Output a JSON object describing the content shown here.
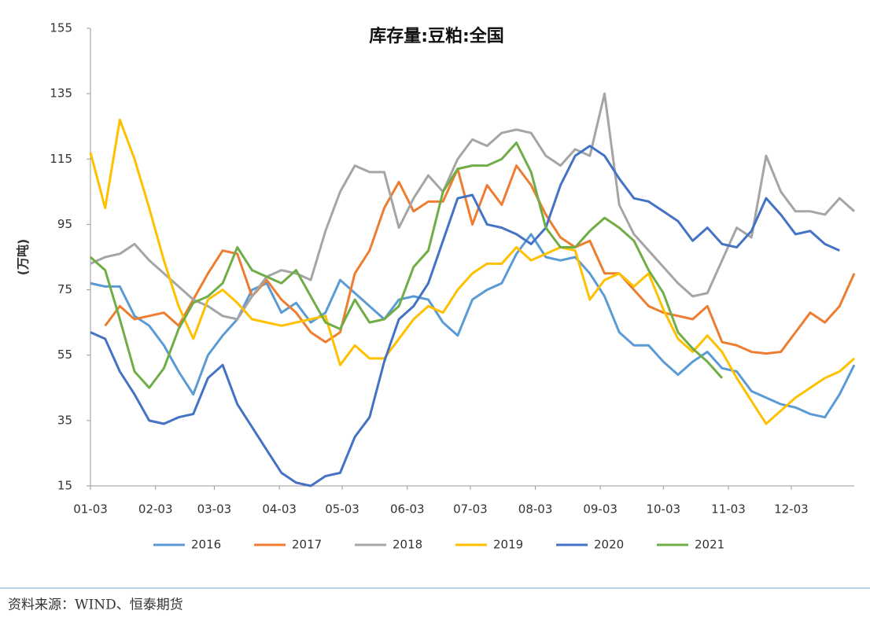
{
  "chart_data": {
    "type": "line",
    "title": "库存量:豆粕:全国",
    "y_label": "(万吨)",
    "x": [
      0,
      1,
      2,
      3,
      4,
      5,
      6,
      7,
      8,
      9,
      10,
      11,
      12,
      13,
      14,
      15,
      16,
      17,
      18,
      19,
      20,
      21,
      22,
      23,
      24,
      25,
      26,
      27,
      28,
      29,
      30,
      31,
      32,
      33,
      34,
      35,
      36,
      37,
      38,
      39,
      40,
      41,
      42,
      43,
      44,
      45,
      46,
      47,
      48,
      49,
      50,
      51,
      52
    ],
    "xlim": [
      0,
      52
    ],
    "xticks": [
      {
        "value": 0,
        "label": "01-03"
      },
      {
        "value": 4.43,
        "label": "02-03"
      },
      {
        "value": 8.43,
        "label": "03-03"
      },
      {
        "value": 12.86,
        "label": "04-03"
      },
      {
        "value": 17.14,
        "label": "05-03"
      },
      {
        "value": 21.57,
        "label": "06-03"
      },
      {
        "value": 25.86,
        "label": "07-03"
      },
      {
        "value": 30.29,
        "label": "08-03"
      },
      {
        "value": 34.71,
        "label": "09-03"
      },
      {
        "value": 39,
        "label": "10-03"
      },
      {
        "value": 43.43,
        "label": "11-03"
      },
      {
        "value": 47.71,
        "label": "12-03"
      }
    ],
    "ylim": [
      15,
      155
    ],
    "yticks": [
      15,
      35,
      55,
      75,
      95,
      115,
      135,
      155
    ],
    "grid": false,
    "series": [
      {
        "name": "2016",
        "color": "#5b9bd5",
        "values": [
          77,
          76,
          76,
          67,
          64,
          58,
          50,
          43,
          55,
          61,
          66,
          75,
          77,
          68,
          71,
          65,
          68,
          78,
          74,
          70,
          66,
          72,
          73,
          72,
          65,
          61,
          72,
          75,
          77,
          86,
          92,
          85,
          84,
          85,
          80,
          73,
          62,
          58,
          58,
          53,
          49,
          53,
          56,
          51,
          50,
          44,
          42,
          40,
          39,
          37,
          36,
          43,
          52
        ]
      },
      {
        "name": "2017",
        "color": "#ed7d31",
        "values": [
          null,
          64,
          70,
          66,
          67,
          68,
          64,
          72,
          80,
          87,
          86,
          73,
          78,
          72,
          68,
          62,
          59,
          62,
          80,
          87,
          100,
          108,
          99,
          102,
          102,
          112,
          95,
          107,
          101,
          113,
          107,
          98,
          91,
          88,
          90,
          80,
          80,
          75,
          70,
          68,
          67,
          66,
          70,
          59,
          58,
          56,
          55.5,
          56,
          62,
          68,
          65,
          70,
          80
        ]
      },
      {
        "name": "2018",
        "color": "#a5a5a5",
        "values": [
          83,
          85,
          86,
          89,
          84,
          80,
          76,
          72,
          70,
          67,
          66,
          73,
          79,
          81,
          80,
          78,
          93,
          105,
          113,
          111,
          111,
          94,
          103,
          110,
          105,
          115,
          121,
          119,
          123,
          124,
          123,
          116,
          113,
          118,
          116,
          135,
          101,
          92,
          87,
          82,
          77,
          73,
          74,
          84,
          94,
          91,
          116,
          105,
          99,
          99,
          98,
          103,
          99
        ]
      },
      {
        "name": "2019",
        "color": "#ffc000",
        "values": [
          117,
          100,
          127,
          115,
          100,
          84,
          70,
          60,
          72,
          75,
          71,
          66,
          65,
          64,
          65,
          66,
          67,
          52,
          58,
          54,
          54,
          60,
          66,
          70,
          68,
          75,
          80,
          83,
          83,
          88,
          84,
          86,
          88,
          87,
          72,
          78,
          80,
          76,
          80,
          69,
          60,
          56,
          61,
          56,
          48,
          41,
          34,
          38,
          42,
          45,
          48,
          50,
          54
        ]
      },
      {
        "name": "2020",
        "color": "#4472c4",
        "values": [
          62,
          60,
          50,
          43,
          35,
          34,
          36,
          37,
          48,
          52,
          40,
          33,
          26,
          19,
          16,
          15,
          18,
          19,
          30,
          36,
          53,
          66,
          70,
          77,
          90,
          103,
          104,
          95,
          94,
          92,
          89,
          94,
          107,
          116,
          119,
          116,
          109,
          103,
          102,
          99,
          96,
          90,
          94,
          89,
          88,
          93,
          103,
          98,
          92,
          93,
          89,
          87,
          null
        ]
      },
      {
        "name": "2021",
        "color": "#70ad47",
        "values": [
          85,
          81,
          66,
          50,
          45,
          51,
          63,
          71,
          73,
          77,
          88,
          81,
          79,
          77,
          81,
          73,
          65,
          63,
          72,
          65,
          66,
          70,
          82,
          87,
          105,
          112,
          113,
          113,
          115,
          120,
          111,
          94,
          88,
          88,
          93,
          97,
          94,
          90,
          81,
          74,
          62,
          57,
          53,
          48,
          null,
          null,
          null,
          null,
          null,
          null,
          null,
          null,
          null
        ]
      }
    ],
    "source": "资料来源：WIND、恒泰期货"
  }
}
